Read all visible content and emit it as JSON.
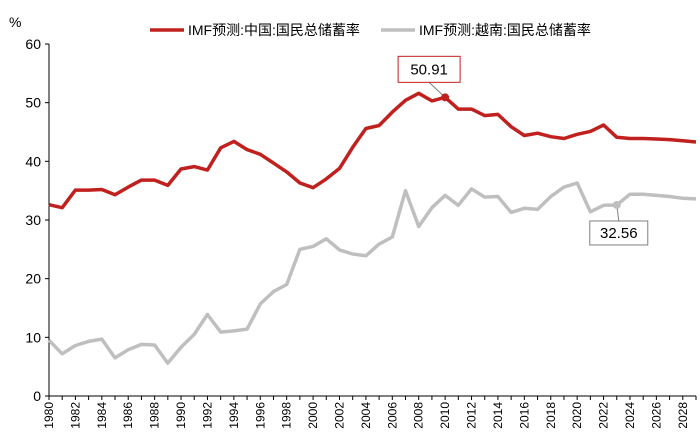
{
  "chart_data": {
    "type": "line",
    "title": "",
    "ylabel": "%",
    "xlabel": "",
    "ylim": [
      0,
      60
    ],
    "yticks": [
      "0",
      "10",
      "20",
      "30",
      "40",
      "50",
      "60"
    ],
    "xlim": [
      1980,
      2029
    ],
    "xticks": [
      "1980",
      "1982",
      "1984",
      "1986",
      "1988",
      "1990",
      "1992",
      "1994",
      "1996",
      "1998",
      "2000",
      "2002",
      "2004",
      "2006",
      "2008",
      "2010",
      "2012",
      "2014",
      "2016",
      "2018",
      "2020",
      "2022",
      "2024",
      "2026",
      "2028"
    ],
    "legend_position": "top",
    "series": [
      {
        "name": "IMF预测:中国:国民总储蓄率",
        "color": "#c0201e",
        "x": [
          1980,
          1981,
          1982,
          1983,
          1984,
          1985,
          1986,
          1987,
          1988,
          1989,
          1990,
          1991,
          1992,
          1993,
          1994,
          1995,
          1996,
          1997,
          1998,
          1999,
          2000,
          2001,
          2002,
          2003,
          2004,
          2005,
          2006,
          2007,
          2008,
          2009,
          2010,
          2011,
          2012,
          2013,
          2014,
          2015,
          2016,
          2017,
          2018,
          2019,
          2020,
          2021,
          2022,
          2023,
          2024,
          2025,
          2026,
          2027,
          2028,
          2029
        ],
        "values": [
          32.6,
          32.1,
          35.1,
          35.1,
          35.2,
          34.3,
          35.6,
          36.8,
          36.8,
          35.9,
          38.7,
          39.1,
          38.5,
          42.3,
          43.4,
          42.0,
          41.2,
          39.7,
          38.2,
          36.3,
          35.5,
          37.0,
          38.8,
          42.4,
          45.6,
          46.1,
          48.4,
          50.4,
          51.6,
          50.3,
          50.91,
          48.9,
          48.9,
          47.8,
          48.0,
          45.9,
          44.4,
          44.8,
          44.2,
          43.9,
          44.6,
          45.1,
          46.2,
          44.1,
          43.9,
          43.9,
          43.8,
          43.7,
          43.5,
          43.3
        ]
      },
      {
        "name": "IMF预测:越南:国民总储蓄率",
        "color": "#bfbfbf",
        "x": [
          1980,
          1981,
          1982,
          1983,
          1984,
          1985,
          1986,
          1987,
          1988,
          1989,
          1990,
          1991,
          1992,
          1993,
          1994,
          1995,
          1996,
          1997,
          1998,
          1999,
          2000,
          2001,
          2002,
          2003,
          2004,
          2005,
          2006,
          2007,
          2008,
          2009,
          2010,
          2011,
          2012,
          2013,
          2014,
          2015,
          2016,
          2017,
          2018,
          2019,
          2020,
          2021,
          2022,
          2023,
          2024,
          2025,
          2026,
          2027,
          2028,
          2029
        ],
        "values": [
          9.5,
          7.2,
          8.6,
          9.3,
          9.7,
          6.5,
          7.9,
          8.8,
          8.7,
          5.6,
          8.3,
          10.5,
          13.9,
          10.9,
          11.1,
          11.4,
          15.7,
          17.8,
          19.0,
          25.0,
          25.5,
          26.8,
          24.9,
          24.2,
          23.9,
          25.9,
          27.1,
          35.0,
          28.9,
          32.1,
          34.2,
          32.5,
          35.3,
          33.9,
          34.0,
          31.3,
          32.0,
          31.8,
          34.0,
          35.6,
          36.3,
          31.4,
          32.5,
          32.56,
          34.4,
          34.4,
          34.2,
          34.0,
          33.7,
          33.6
        ]
      }
    ],
    "annotations": [
      {
        "series": 0,
        "x": 2010,
        "value": 50.91,
        "text": "50.91",
        "border_color": "#c0201e"
      },
      {
        "series": 1,
        "x": 2023,
        "value": 32.56,
        "text": "32.56",
        "border_color": "#7f7f7f"
      }
    ]
  }
}
